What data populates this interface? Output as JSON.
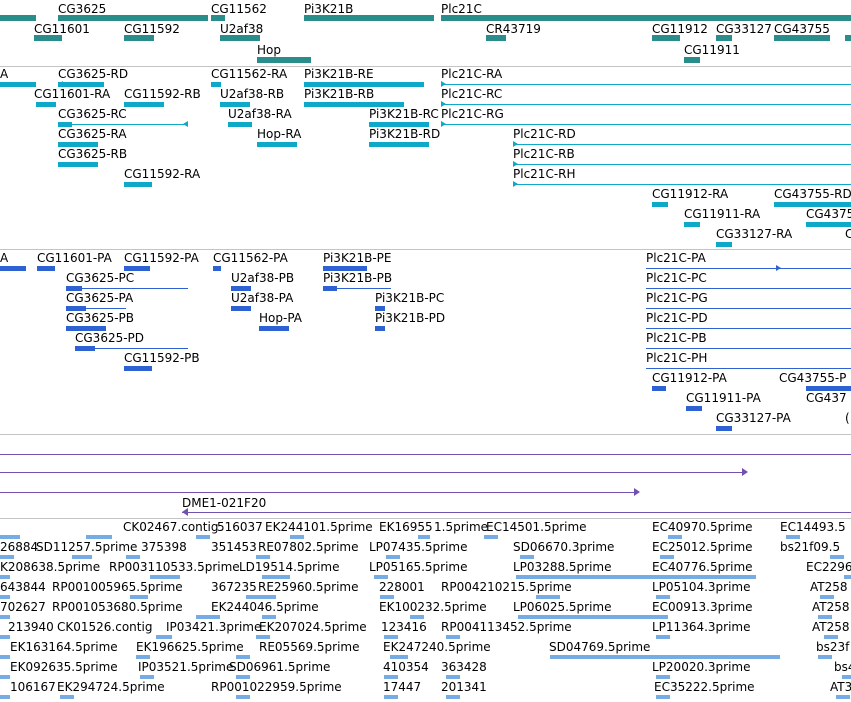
{
  "genes": [
    {
      "label": "CG3625",
      "bar": "thick",
      "line": "arrow-left"
    },
    {
      "label": "CG11562",
      "bar": "thick",
      "line": "none"
    },
    {
      "label": "Pi3K21B",
      "bar": "thick",
      "line": "none"
    },
    {
      "label": "Plc21C",
      "bar": "thick",
      "line": "none"
    },
    {
      "label": "CG11601",
      "bar": "thick",
      "line": "none"
    },
    {
      "label": "CG11592",
      "bar": "thick",
      "line": "none"
    },
    {
      "label": "U2af38",
      "bar": "thick",
      "line": "none"
    },
    {
      "label": "CR43719",
      "bar": "thick",
      "line": "none"
    },
    {
      "label": "CG11912",
      "bar": "thick",
      "line": "none"
    },
    {
      "label": "CG33127",
      "bar": "thick",
      "line": "none"
    },
    {
      "label": "CG43755",
      "bar": "thick",
      "line": "none"
    },
    {
      "label": "CG11911",
      "bar": "thick",
      "line": "none"
    },
    {
      "label": "Hop",
      "bar": "thick",
      "line": "none"
    }
  ],
  "transcripts": [
    {
      "label": "A"
    },
    {
      "label": "CG3625-RD"
    },
    {
      "label": "CG11562-RA"
    },
    {
      "label": "Pi3K21B-RE"
    },
    {
      "label": "Plc21C-RA"
    },
    {
      "label": "CG11601-RA"
    },
    {
      "label": "CG11592-RB"
    },
    {
      "label": "U2af38-RB"
    },
    {
      "label": "Pi3K21B-RB"
    },
    {
      "label": "Plc21C-RC"
    },
    {
      "label": "CG3625-RC"
    },
    {
      "label": "U2af38-RA"
    },
    {
      "label": "Pi3K21B-RC"
    },
    {
      "label": "Plc21C-RG"
    },
    {
      "label": "CG3625-RA"
    },
    {
      "label": "Hop-RA"
    },
    {
      "label": "Pi3K21B-RD"
    },
    {
      "label": "Plc21C-RD"
    },
    {
      "label": "CG3625-RB"
    },
    {
      "label": "Plc21C-RB"
    },
    {
      "label": "CG11592-RA"
    },
    {
      "label": "Plc21C-RH"
    },
    {
      "label": "CG11912-RA"
    },
    {
      "label": "CG43755-RD"
    },
    {
      "label": "CG11911-RA"
    },
    {
      "label": "CG4375"
    },
    {
      "label": "CG33127-RA"
    },
    {
      "label": "C"
    }
  ],
  "proteins": [
    {
      "label": "A"
    },
    {
      "label": "CG11601-PA"
    },
    {
      "label": "CG11592-PA"
    },
    {
      "label": "CG11562-PA"
    },
    {
      "label": "Pi3K21B-PE"
    },
    {
      "label": "Plc21C-PA"
    },
    {
      "label": "CG3625-PC"
    },
    {
      "label": "U2af38-PB"
    },
    {
      "label": "Pi3K21B-PB"
    },
    {
      "label": "Plc21C-PC"
    },
    {
      "label": "CG3625-PA"
    },
    {
      "label": "U2af38-PA"
    },
    {
      "label": "Pi3K21B-PC"
    },
    {
      "label": "Plc21C-PG"
    },
    {
      "label": "CG3625-PB"
    },
    {
      "label": "Hop-PA"
    },
    {
      "label": "Pi3K21B-PD"
    },
    {
      "label": "Plc21C-PD"
    },
    {
      "label": "CG3625-PD"
    },
    {
      "label": "Plc21C-PB"
    },
    {
      "label": "CG11592-PB"
    },
    {
      "label": "Plc21C-PH"
    },
    {
      "label": "CG11912-PA"
    },
    {
      "label": "CG43755-P"
    },
    {
      "label": "CG11911-PA"
    },
    {
      "label": "CG437"
    },
    {
      "label": "CG33127-PA"
    },
    {
      "label": "("
    }
  ],
  "clone_label": "DME1-021F20",
  "ests": [
    "CK02467.contig",
    "516037",
    "EK244101.5prime",
    "EK16955",
    "1.5prime",
    "EC14501.5prime",
    "EC40970.5prime",
    "EC14493.5",
    "26884",
    "SD11257.5prime",
    "375398",
    "351453",
    "RE07802.5prime",
    "LP07435.5prime",
    "SD06670.3prime",
    "EC25012.5prime",
    "bs21f09.5",
    "K208638.5prime",
    "RP003110533.5prime",
    "LD19514.5prime",
    "LP05165.5prime",
    "LP03288.5prime",
    "EC40776.5prime",
    "EC2296",
    "643844",
    "RP001005965.5prime",
    "367235",
    "RE25960.5prime",
    "228001",
    "RP004210215.5prime",
    "LP05104.3prime",
    "AT258",
    "702627",
    "RP001053680.5prime",
    "EK244046.5prime",
    "EK100232.5prime",
    "LP06025.5prime",
    "EC00913.3prime",
    "AT258",
    "213940",
    "CK01526.contig",
    "IP03421.3prime",
    "EK207024.5prime",
    "123416",
    "RP004113452.5prime",
    "LP11364.3prime",
    "AT258",
    "EK163164.5prime",
    "EK196625.5prime",
    "RE05569.5prime",
    "EK247240.5prime",
    "SD04769.5prime",
    "bs23f",
    "EK092635.5prime",
    "IP03521.5prime",
    "SD06961.5prime",
    "410354",
    "363428",
    "LP20020.3prime",
    "bs4",
    "106167",
    "EK294724.5prime",
    "RP001022959.5prime",
    "17447",
    "201341",
    "EC35222.5prime",
    "AT3"
  ],
  "colors": {
    "gene": "#2b8c8c",
    "transcript": "#0ea9c9",
    "protein": "#2e62d3",
    "clone": "#7451b0",
    "est": "#76abe3",
    "divider": "#c4c4c4"
  }
}
